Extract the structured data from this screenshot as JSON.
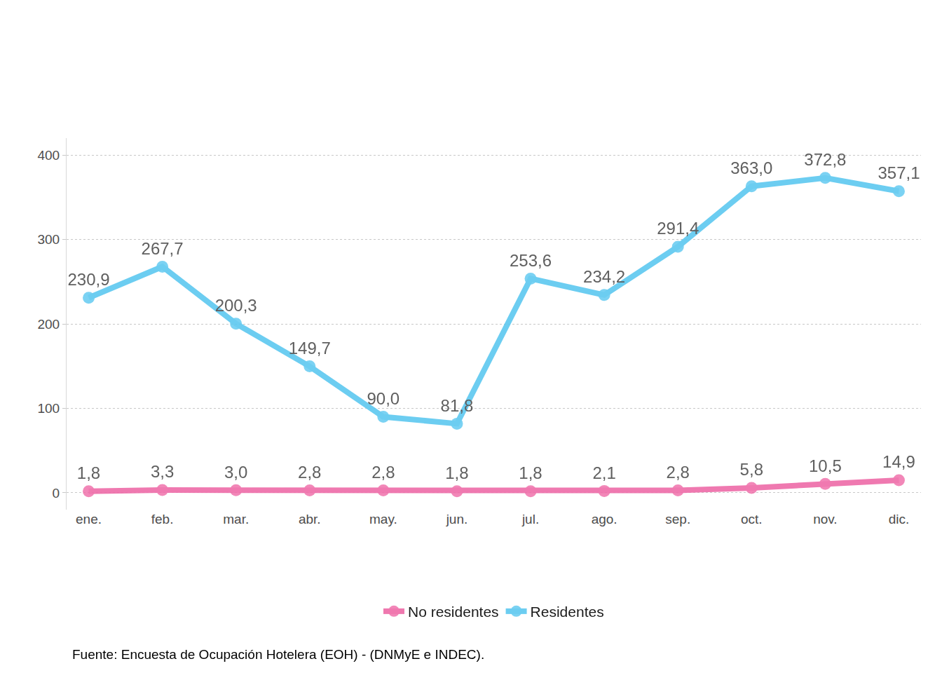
{
  "chart_data": {
    "type": "line",
    "categories": [
      "ene.",
      "feb.",
      "mar.",
      "abr.",
      "may.",
      "jun.",
      "jul.",
      "ago.",
      "sep.",
      "oct.",
      "nov.",
      "dic."
    ],
    "series": [
      {
        "name": "No residentes",
        "color": "#ee6aa7",
        "values": [
          1.8,
          3.3,
          3.0,
          2.8,
          2.8,
          1.8,
          1.8,
          2.1,
          2.8,
          5.8,
          10.5,
          14.9
        ],
        "value_labels": [
          "1,8",
          "3,3",
          "3,0",
          "2,8",
          "2,8",
          "1,8",
          "1,8",
          "2,1",
          "2,8",
          "5,8",
          "10,5",
          "14,9"
        ]
      },
      {
        "name": "Residentes",
        "color": "#5cc8f0",
        "values": [
          230.9,
          267.7,
          200.3,
          149.7,
          90.0,
          81.8,
          253.6,
          234.2,
          291.4,
          363.0,
          372.8,
          357.1
        ],
        "value_labels": [
          "230,9",
          "267,7",
          "200,3",
          "149,7",
          "90,0",
          "81,8",
          "253,6",
          "234,2",
          "291,4",
          "363,0",
          "372,8",
          "357,1"
        ]
      }
    ],
    "ylim": [
      -20,
      420
    ],
    "yticks": [
      0,
      100,
      200,
      300,
      400
    ],
    "grid": true,
    "data_labels": true,
    "legend": "bottom",
    "marker": "circle",
    "source": "Fuente: Encuesta de Ocupación Hotelera (EOH) - (DNMyE e INDEC)."
  }
}
